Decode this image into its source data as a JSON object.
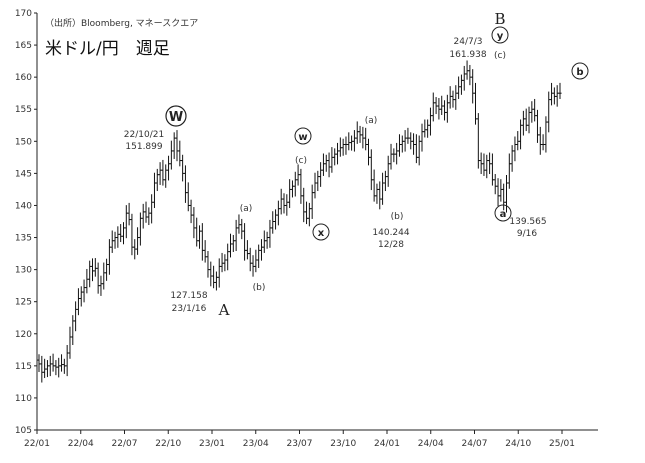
{
  "chart_data": {
    "type": "ohlc",
    "title": "米ドル/円　週足",
    "source": "（出所）Bloomberg, マネースクエア",
    "ylim": [
      105,
      170
    ],
    "y_ticks": [
      105,
      110,
      115,
      120,
      125,
      130,
      135,
      140,
      145,
      150,
      155,
      160,
      165,
      170
    ],
    "x_ticks": [
      "22/01",
      "22/04",
      "22/07",
      "22/10",
      "23/01",
      "23/04",
      "23/07",
      "23/10",
      "24/01",
      "24/04",
      "24/07",
      "24/10",
      "25/01"
    ],
    "grid": false,
    "weekly_close": [
      115.3,
      114.0,
      114.5,
      115.0,
      115.3,
      115.0,
      114.8,
      115.0,
      115.2,
      115.0,
      117.0,
      119.5,
      122.0,
      123.8,
      125.5,
      126.5,
      127.2,
      128.5,
      130.5,
      129.8,
      130.2,
      127.5,
      127.8,
      129.5,
      130.8,
      133.5,
      134.5,
      135.0,
      135.5,
      135.2,
      136.5,
      138.8,
      137.8,
      133.5,
      133.2,
      135.0,
      138.0,
      139.0,
      138.2,
      138.8,
      140.5,
      143.5,
      144.8,
      145.5,
      144.0,
      145.5,
      146.5,
      148.5,
      150.5,
      148.5,
      147.0,
      145.0,
      142.0,
      140.0,
      138.5,
      136.5,
      134.5,
      136.0,
      133.0,
      132.0,
      130.0,
      129.0,
      128.0,
      128.8,
      130.5,
      131.0,
      131.5,
      132.8,
      134.0,
      134.5,
      136.5,
      137.0,
      136.0,
      133.0,
      132.5,
      131.0,
      130.5,
      131.5,
      133.0,
      133.5,
      134.5,
      135.0,
      136.5,
      137.5,
      138.5,
      139.5,
      141.0,
      140.0,
      140.5,
      142.5,
      143.0,
      144.0,
      144.8,
      141.5,
      139.0,
      138.0,
      139.5,
      142.0,
      143.5,
      144.5,
      145.5,
      146.5,
      147.0,
      146.0,
      147.5,
      148.0,
      148.5,
      149.0,
      149.5,
      149.5,
      149.8,
      150.0,
      150.5,
      151.5,
      151.0,
      150.5,
      149.5,
      147.5,
      144.0,
      141.5,
      142.5,
      141.0,
      143.5,
      144.5,
      146.5,
      148.0,
      148.0,
      148.5,
      149.5,
      150.0,
      150.5,
      150.5,
      150.0,
      149.5,
      147.5,
      150.0,
      151.5,
      151.8,
      152.5,
      154.0,
      156.0,
      155.5,
      155.0,
      155.5,
      154.5,
      156.0,
      157.0,
      156.5,
      157.5,
      158.5,
      159.5,
      160.5,
      161.0,
      160.0,
      157.5,
      153.5,
      147.0,
      146.5,
      145.5,
      147.0,
      146.5,
      144.0,
      143.0,
      141.5,
      142.5,
      140.5,
      143.5,
      146.5,
      148.5,
      149.5,
      150.0,
      152.5,
      153.5,
      152.5,
      154.5,
      155.0,
      154.0,
      151.0,
      149.5,
      149.5,
      153.0,
      156.5,
      157.5,
      157.0,
      157.5,
      157.5
    ],
    "annotations": {
      "W_label": "W",
      "W_date": "22/10/21",
      "W_value": "151.899",
      "A_label": "A",
      "A_value": "127.158",
      "A_date": "23/1/16",
      "a1_label": "(a)",
      "b1_label": "(b)",
      "w_label": "w",
      "c1_label": "(c)",
      "x_label": "x",
      "a2_label": "(a)",
      "b2_label": "(b)",
      "b2_value": "140.244",
      "b2_date": "12/28",
      "B_label": "B",
      "y_label": "y",
      "B_date": "24/7/3",
      "B_value": "161.938",
      "c2_label": "(c)",
      "a3_label": "a",
      "a3_value": "139.565",
      "a3_date": "9/16",
      "b3_label": "b"
    }
  }
}
